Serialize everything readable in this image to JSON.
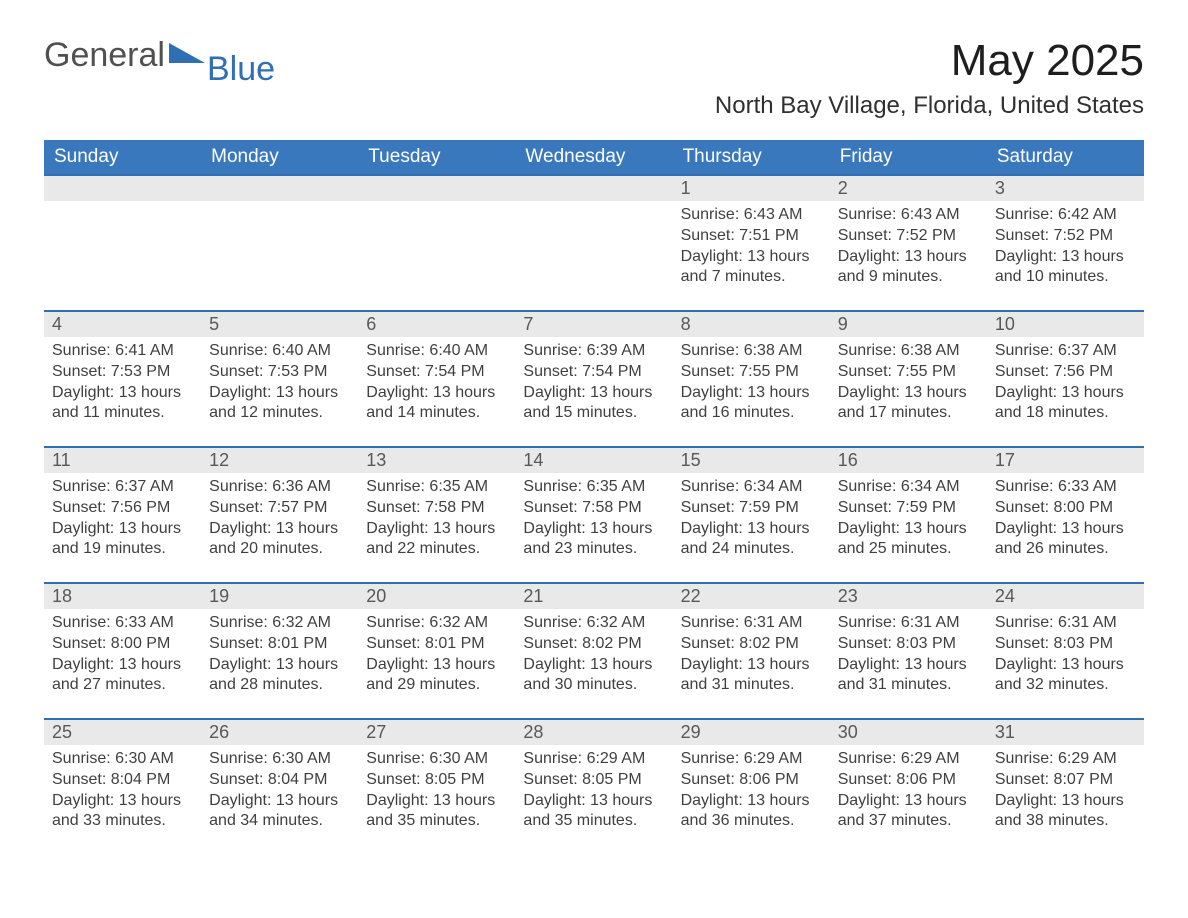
{
  "logo": {
    "word1": "General",
    "word2": "Blue",
    "accent_color": "#2f6fb4"
  },
  "title": "May 2025",
  "location": "North Bay Village, Florida, United States",
  "colors": {
    "header_bg": "#3a78bd",
    "header_text": "#ffffff",
    "daynum_bg": "#e9e9e9",
    "week_border": "#2f6fb4",
    "body_text": "#404040",
    "page_bg": "#ffffff"
  },
  "fonts": {
    "title_size_pt": 44,
    "location_size_pt": 24,
    "dow_size_pt": 19,
    "daynum_size_pt": 18,
    "body_size_pt": 16
  },
  "days_of_week": [
    "Sunday",
    "Monday",
    "Tuesday",
    "Wednesday",
    "Thursday",
    "Friday",
    "Saturday"
  ],
  "weeks": [
    [
      null,
      null,
      null,
      null,
      {
        "n": "1",
        "sr": "Sunrise: 6:43 AM",
        "ss": "Sunset: 7:51 PM",
        "dl": "Daylight: 13 hours and 7 minutes."
      },
      {
        "n": "2",
        "sr": "Sunrise: 6:43 AM",
        "ss": "Sunset: 7:52 PM",
        "dl": "Daylight: 13 hours and 9 minutes."
      },
      {
        "n": "3",
        "sr": "Sunrise: 6:42 AM",
        "ss": "Sunset: 7:52 PM",
        "dl": "Daylight: 13 hours and 10 minutes."
      }
    ],
    [
      {
        "n": "4",
        "sr": "Sunrise: 6:41 AM",
        "ss": "Sunset: 7:53 PM",
        "dl": "Daylight: 13 hours and 11 minutes."
      },
      {
        "n": "5",
        "sr": "Sunrise: 6:40 AM",
        "ss": "Sunset: 7:53 PM",
        "dl": "Daylight: 13 hours and 12 minutes."
      },
      {
        "n": "6",
        "sr": "Sunrise: 6:40 AM",
        "ss": "Sunset: 7:54 PM",
        "dl": "Daylight: 13 hours and 14 minutes."
      },
      {
        "n": "7",
        "sr": "Sunrise: 6:39 AM",
        "ss": "Sunset: 7:54 PM",
        "dl": "Daylight: 13 hours and 15 minutes."
      },
      {
        "n": "8",
        "sr": "Sunrise: 6:38 AM",
        "ss": "Sunset: 7:55 PM",
        "dl": "Daylight: 13 hours and 16 minutes."
      },
      {
        "n": "9",
        "sr": "Sunrise: 6:38 AM",
        "ss": "Sunset: 7:55 PM",
        "dl": "Daylight: 13 hours and 17 minutes."
      },
      {
        "n": "10",
        "sr": "Sunrise: 6:37 AM",
        "ss": "Sunset: 7:56 PM",
        "dl": "Daylight: 13 hours and 18 minutes."
      }
    ],
    [
      {
        "n": "11",
        "sr": "Sunrise: 6:37 AM",
        "ss": "Sunset: 7:56 PM",
        "dl": "Daylight: 13 hours and 19 minutes."
      },
      {
        "n": "12",
        "sr": "Sunrise: 6:36 AM",
        "ss": "Sunset: 7:57 PM",
        "dl": "Daylight: 13 hours and 20 minutes."
      },
      {
        "n": "13",
        "sr": "Sunrise: 6:35 AM",
        "ss": "Sunset: 7:58 PM",
        "dl": "Daylight: 13 hours and 22 minutes."
      },
      {
        "n": "14",
        "sr": "Sunrise: 6:35 AM",
        "ss": "Sunset: 7:58 PM",
        "dl": "Daylight: 13 hours and 23 minutes."
      },
      {
        "n": "15",
        "sr": "Sunrise: 6:34 AM",
        "ss": "Sunset: 7:59 PM",
        "dl": "Daylight: 13 hours and 24 minutes."
      },
      {
        "n": "16",
        "sr": "Sunrise: 6:34 AM",
        "ss": "Sunset: 7:59 PM",
        "dl": "Daylight: 13 hours and 25 minutes."
      },
      {
        "n": "17",
        "sr": "Sunrise: 6:33 AM",
        "ss": "Sunset: 8:00 PM",
        "dl": "Daylight: 13 hours and 26 minutes."
      }
    ],
    [
      {
        "n": "18",
        "sr": "Sunrise: 6:33 AM",
        "ss": "Sunset: 8:00 PM",
        "dl": "Daylight: 13 hours and 27 minutes."
      },
      {
        "n": "19",
        "sr": "Sunrise: 6:32 AM",
        "ss": "Sunset: 8:01 PM",
        "dl": "Daylight: 13 hours and 28 minutes."
      },
      {
        "n": "20",
        "sr": "Sunrise: 6:32 AM",
        "ss": "Sunset: 8:01 PM",
        "dl": "Daylight: 13 hours and 29 minutes."
      },
      {
        "n": "21",
        "sr": "Sunrise: 6:32 AM",
        "ss": "Sunset: 8:02 PM",
        "dl": "Daylight: 13 hours and 30 minutes."
      },
      {
        "n": "22",
        "sr": "Sunrise: 6:31 AM",
        "ss": "Sunset: 8:02 PM",
        "dl": "Daylight: 13 hours and 31 minutes."
      },
      {
        "n": "23",
        "sr": "Sunrise: 6:31 AM",
        "ss": "Sunset: 8:03 PM",
        "dl": "Daylight: 13 hours and 31 minutes."
      },
      {
        "n": "24",
        "sr": "Sunrise: 6:31 AM",
        "ss": "Sunset: 8:03 PM",
        "dl": "Daylight: 13 hours and 32 minutes."
      }
    ],
    [
      {
        "n": "25",
        "sr": "Sunrise: 6:30 AM",
        "ss": "Sunset: 8:04 PM",
        "dl": "Daylight: 13 hours and 33 minutes."
      },
      {
        "n": "26",
        "sr": "Sunrise: 6:30 AM",
        "ss": "Sunset: 8:04 PM",
        "dl": "Daylight: 13 hours and 34 minutes."
      },
      {
        "n": "27",
        "sr": "Sunrise: 6:30 AM",
        "ss": "Sunset: 8:05 PM",
        "dl": "Daylight: 13 hours and 35 minutes."
      },
      {
        "n": "28",
        "sr": "Sunrise: 6:29 AM",
        "ss": "Sunset: 8:05 PM",
        "dl": "Daylight: 13 hours and 35 minutes."
      },
      {
        "n": "29",
        "sr": "Sunrise: 6:29 AM",
        "ss": "Sunset: 8:06 PM",
        "dl": "Daylight: 13 hours and 36 minutes."
      },
      {
        "n": "30",
        "sr": "Sunrise: 6:29 AM",
        "ss": "Sunset: 8:06 PM",
        "dl": "Daylight: 13 hours and 37 minutes."
      },
      {
        "n": "31",
        "sr": "Sunrise: 6:29 AM",
        "ss": "Sunset: 8:07 PM",
        "dl": "Daylight: 13 hours and 38 minutes."
      }
    ]
  ]
}
